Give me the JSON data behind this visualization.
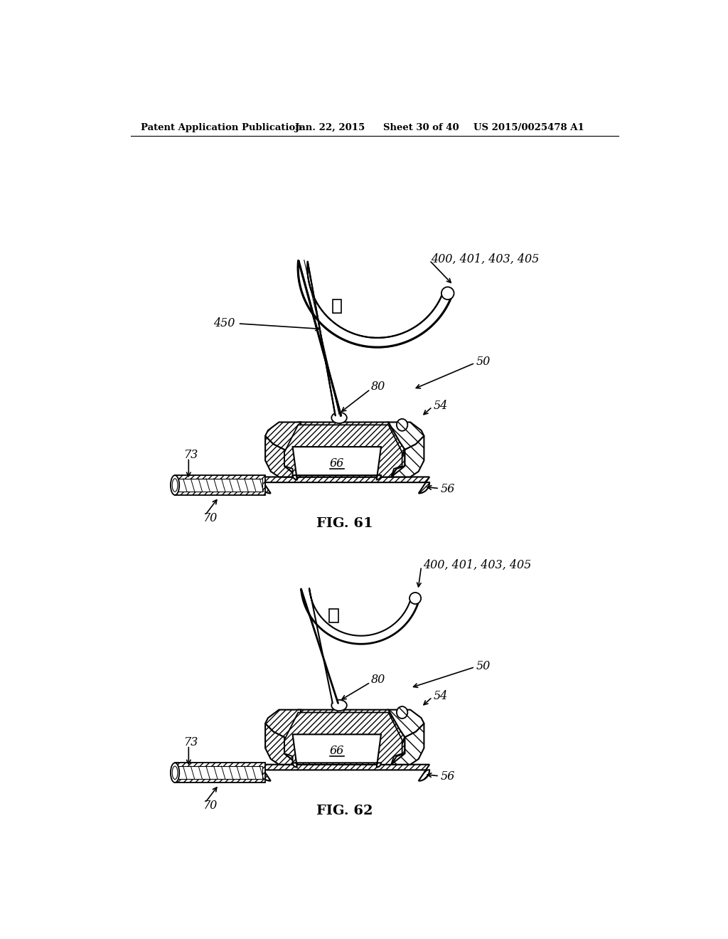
{
  "bg_color": "#ffffff",
  "header_text": "Patent Application Publication",
  "header_date": "Jan. 22, 2015",
  "header_sheet": "Sheet 30 of 40",
  "header_patent": "US 2015/0025478 A1",
  "fig1_label": "FIG. 61",
  "fig2_label": "FIG. 62"
}
